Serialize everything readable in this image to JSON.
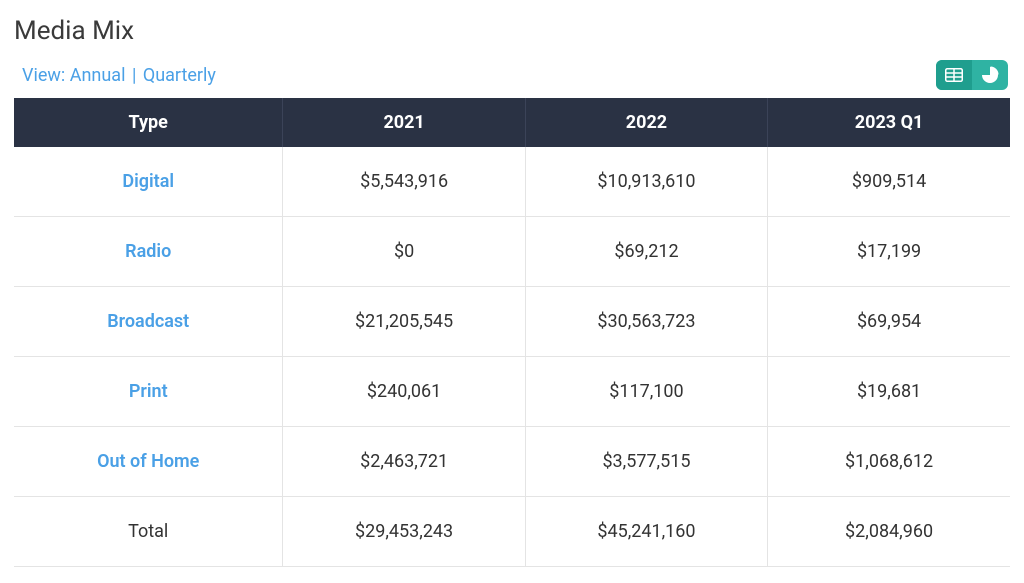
{
  "title": "Media Mix",
  "view": {
    "prefix": "View:",
    "annual_label": "Annual",
    "separator": "|",
    "quarterly_label": "Quarterly"
  },
  "toggle": {
    "table_icon_name": "table-icon",
    "chart_icon_name": "pie-chart-icon",
    "active": "table"
  },
  "table": {
    "header_bg": "#2a3244",
    "header_text": "#ffffff",
    "cell_border": "#e4e4e4",
    "link_color": "#4aa0e6",
    "text_color": "#333333",
    "columns": [
      "Type",
      "2021",
      "2022",
      "2023 Q1"
    ],
    "rows": [
      {
        "type": "Digital",
        "values": [
          "$5,543,916",
          "$10,913,610",
          "$909,514"
        ],
        "is_link": true
      },
      {
        "type": "Radio",
        "values": [
          "$0",
          "$69,212",
          "$17,199"
        ],
        "is_link": true
      },
      {
        "type": "Broadcast",
        "values": [
          "$21,205,545",
          "$30,563,723",
          "$69,954"
        ],
        "is_link": true
      },
      {
        "type": "Print",
        "values": [
          "$240,061",
          "$117,100",
          "$19,681"
        ],
        "is_link": true
      },
      {
        "type": "Out of Home",
        "values": [
          "$2,463,721",
          "$3,577,515",
          "$1,068,612"
        ],
        "is_link": true
      },
      {
        "type": "Total",
        "values": [
          "$29,453,243",
          "$45,241,160",
          "$2,084,960"
        ],
        "is_link": false,
        "is_total": true
      }
    ]
  },
  "colors": {
    "toggle_bg": "#2fb3a3",
    "toggle_active": "#1f9e8e",
    "toggle_icon": "#ffffff"
  }
}
